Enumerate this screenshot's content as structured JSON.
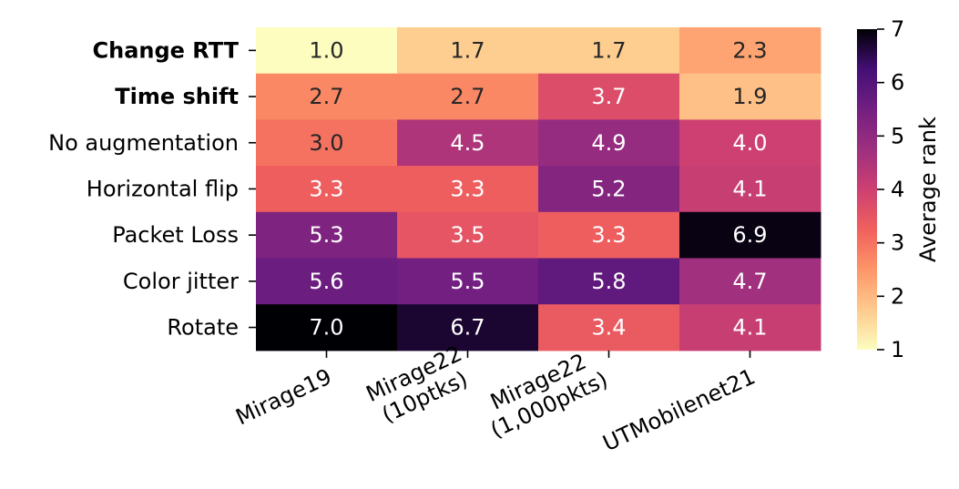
{
  "chart_data": {
    "type": "heatmap",
    "title": "",
    "xlabel": "",
    "ylabel": "",
    "rows": [
      "Change RTT",
      "Time shift",
      "No augmentation",
      "Horizontal flip",
      "Packet Loss",
      "Color jitter",
      "Rotate"
    ],
    "bold_rows": [
      "Change RTT",
      "Time shift"
    ],
    "columns": [
      [
        "Mirage19"
      ],
      [
        "Mirage22",
        "(10ptks)"
      ],
      [
        "Mirage22",
        "(1,000pkts)"
      ],
      [
        "UTMobilenet21"
      ]
    ],
    "values": [
      [
        1.0,
        1.7,
        1.7,
        2.3
      ],
      [
        2.7,
        2.7,
        3.7,
        1.9
      ],
      [
        3.0,
        4.5,
        4.9,
        4.0
      ],
      [
        3.3,
        3.3,
        5.2,
        4.1
      ],
      [
        5.3,
        3.5,
        3.3,
        6.9
      ],
      [
        5.6,
        5.5,
        5.8,
        4.7
      ],
      [
        7.0,
        6.7,
        3.4,
        4.1
      ]
    ],
    "colorbar": {
      "label": "Average rank",
      "range": [
        1,
        7
      ],
      "ticks": [
        1,
        2,
        3,
        4,
        5,
        6,
        7
      ],
      "colormap": "magma_r"
    }
  }
}
